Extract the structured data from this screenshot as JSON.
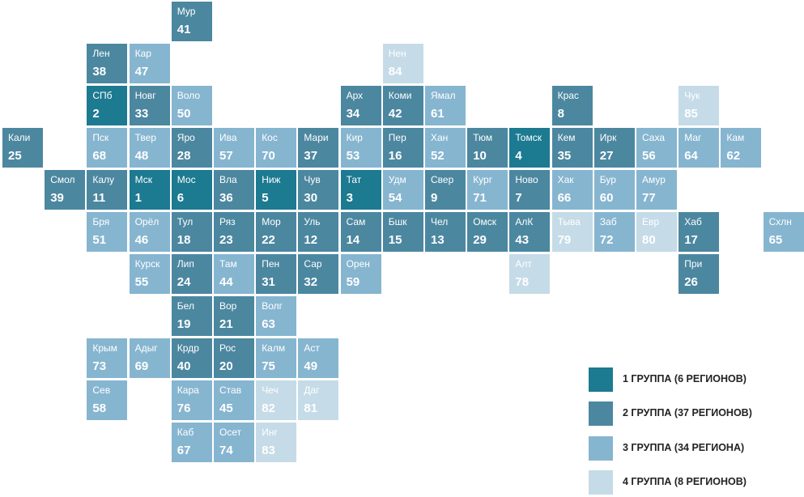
{
  "group_colors": {
    "1": "#1c7a91",
    "2": "#4c87a0",
    "3": "#86b5d0",
    "4": "#c5dbe7"
  },
  "legend": [
    {
      "group": 1,
      "label": "1 ГРУППА (6 РЕГИОНОВ)"
    },
    {
      "group": 2,
      "label": "2 ГРУППА (37 РЕГИОНОВ)"
    },
    {
      "group": 3,
      "label": "3 ГРУППА (34 РЕГИОНА)"
    },
    {
      "group": 4,
      "label": "4 ГРУППА (8 РЕГИОНОВ)"
    }
  ],
  "regions": [
    {
      "abbr": "Мур",
      "rank": "41",
      "group": 2
    },
    {
      "abbr": "Лен",
      "rank": "38",
      "group": 2
    },
    {
      "abbr": "Кар",
      "rank": "47",
      "group": 3
    },
    {
      "abbr": "Нен",
      "rank": "84",
      "group": 4
    },
    {
      "abbr": "СПб",
      "rank": "2",
      "group": 1
    },
    {
      "abbr": "Новг",
      "rank": "33",
      "group": 2
    },
    {
      "abbr": "Воло",
      "rank": "50",
      "group": 3
    },
    {
      "abbr": "Арх",
      "rank": "34",
      "group": 2
    },
    {
      "abbr": "Коми",
      "rank": "42",
      "group": 2
    },
    {
      "abbr": "Ямал",
      "rank": "61",
      "group": 3
    },
    {
      "abbr": "Крас",
      "rank": "8",
      "group": 2
    },
    {
      "abbr": "Чук",
      "rank": "85",
      "group": 4
    },
    {
      "abbr": "Кали",
      "rank": "25",
      "group": 2
    },
    {
      "abbr": "Пск",
      "rank": "68",
      "group": 3
    },
    {
      "abbr": "Твер",
      "rank": "48",
      "group": 3
    },
    {
      "abbr": "Яро",
      "rank": "28",
      "group": 2
    },
    {
      "abbr": "Ива",
      "rank": "57",
      "group": 3
    },
    {
      "abbr": "Кос",
      "rank": "70",
      "group": 3
    },
    {
      "abbr": "Мари",
      "rank": "37",
      "group": 2
    },
    {
      "abbr": "Кир",
      "rank": "53",
      "group": 3
    },
    {
      "abbr": "Пер",
      "rank": "16",
      "group": 2
    },
    {
      "abbr": "Хан",
      "rank": "52",
      "group": 3
    },
    {
      "abbr": "Тюм",
      "rank": "10",
      "group": 2
    },
    {
      "abbr": "Томск",
      "rank": "4",
      "group": 1
    },
    {
      "abbr": "Кем",
      "rank": "35",
      "group": 2
    },
    {
      "abbr": "Ирк",
      "rank": "27",
      "group": 2
    },
    {
      "abbr": "Саха",
      "rank": "56",
      "group": 3
    },
    {
      "abbr": "Маг",
      "rank": "64",
      "group": 3
    },
    {
      "abbr": "Кам",
      "rank": "62",
      "group": 3
    },
    {
      "abbr": "Смол",
      "rank": "39",
      "group": 2
    },
    {
      "abbr": "Калу",
      "rank": "11",
      "group": 2
    },
    {
      "abbr": "Мск",
      "rank": "1",
      "group": 1
    },
    {
      "abbr": "Мос",
      "rank": "6",
      "group": 1
    },
    {
      "abbr": "Вла",
      "rank": "36",
      "group": 2
    },
    {
      "abbr": "Ниж",
      "rank": "5",
      "group": 1
    },
    {
      "abbr": "Чув",
      "rank": "30",
      "group": 2
    },
    {
      "abbr": "Тат",
      "rank": "3",
      "group": 1
    },
    {
      "abbr": "Удм",
      "rank": "54",
      "group": 3
    },
    {
      "abbr": "Свер",
      "rank": "9",
      "group": 2
    },
    {
      "abbr": "Кург",
      "rank": "71",
      "group": 3
    },
    {
      "abbr": "Ново",
      "rank": "7",
      "group": 2
    },
    {
      "abbr": "Хак",
      "rank": "66",
      "group": 3
    },
    {
      "abbr": "Бур",
      "rank": "60",
      "group": 3
    },
    {
      "abbr": "Амур",
      "rank": "77",
      "group": 3
    },
    {
      "abbr": "Бря",
      "rank": "51",
      "group": 3
    },
    {
      "abbr": "Орёл",
      "rank": "46",
      "group": 3
    },
    {
      "abbr": "Тул",
      "rank": "18",
      "group": 2
    },
    {
      "abbr": "Ряз",
      "rank": "23",
      "group": 2
    },
    {
      "abbr": "Мор",
      "rank": "22",
      "group": 2
    },
    {
      "abbr": "Уль",
      "rank": "12",
      "group": 2
    },
    {
      "abbr": "Сам",
      "rank": "14",
      "group": 2
    },
    {
      "abbr": "Бшк",
      "rank": "15",
      "group": 2
    },
    {
      "abbr": "Чел",
      "rank": "13",
      "group": 2
    },
    {
      "abbr": "Омск",
      "rank": "29",
      "group": 2
    },
    {
      "abbr": "АлК",
      "rank": "43",
      "group": 2
    },
    {
      "abbr": "Тыва",
      "rank": "79",
      "group": 4
    },
    {
      "abbr": "Заб",
      "rank": "72",
      "group": 3
    },
    {
      "abbr": "Евр",
      "rank": "80",
      "group": 4
    },
    {
      "abbr": "Хаб",
      "rank": "17",
      "group": 2
    },
    {
      "abbr": "Схлн",
      "rank": "65",
      "group": 3
    },
    {
      "abbr": "Курск",
      "rank": "55",
      "group": 3
    },
    {
      "abbr": "Лип",
      "rank": "24",
      "group": 2
    },
    {
      "abbr": "Там",
      "rank": "44",
      "group": 3
    },
    {
      "abbr": "Пен",
      "rank": "31",
      "group": 2
    },
    {
      "abbr": "Сар",
      "rank": "32",
      "group": 2
    },
    {
      "abbr": "Орен",
      "rank": "59",
      "group": 3
    },
    {
      "abbr": "Алт",
      "rank": "78",
      "group": 4
    },
    {
      "abbr": "При",
      "rank": "26",
      "group": 2
    },
    {
      "abbr": "Бел",
      "rank": "19",
      "group": 2
    },
    {
      "abbr": "Вор",
      "rank": "21",
      "group": 2
    },
    {
      "abbr": "Волг",
      "rank": "63",
      "group": 3
    },
    {
      "abbr": "Крым",
      "rank": "73",
      "group": 3
    },
    {
      "abbr": "Адыг",
      "rank": "69",
      "group": 3
    },
    {
      "abbr": "Крдр",
      "rank": "40",
      "group": 2
    },
    {
      "abbr": "Рос",
      "rank": "20",
      "group": 2
    },
    {
      "abbr": "Калм",
      "rank": "75",
      "group": 3
    },
    {
      "abbr": "Аст",
      "rank": "49",
      "group": 3
    },
    {
      "abbr": "Сев",
      "rank": "58",
      "group": 3
    },
    {
      "abbr": "Кара",
      "rank": "76",
      "group": 3
    },
    {
      "abbr": "Став",
      "rank": "45",
      "group": 3
    },
    {
      "abbr": "Чеч",
      "rank": "82",
      "group": 4
    },
    {
      "abbr": "Даг",
      "rank": "81",
      "group": 4
    },
    {
      "abbr": "Каб",
      "rank": "67",
      "group": 3
    },
    {
      "abbr": "Осет",
      "rank": "74",
      "group": 3
    },
    {
      "abbr": "Инг",
      "rank": "83",
      "group": 4
    }
  ]
}
